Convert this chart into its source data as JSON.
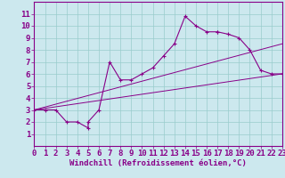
{
  "xlabel": "Windchill (Refroidissement éolien,°C)",
  "xlim": [
    0,
    23
  ],
  "ylim": [
    0,
    12
  ],
  "xticks": [
    0,
    1,
    2,
    3,
    4,
    5,
    6,
    7,
    8,
    9,
    10,
    11,
    12,
    13,
    14,
    15,
    16,
    17,
    18,
    19,
    20,
    21,
    22,
    23
  ],
  "yticks": [
    1,
    2,
    3,
    4,
    5,
    6,
    7,
    8,
    9,
    10,
    11
  ],
  "bg_color": "#cce8ee",
  "line_color": "#880088",
  "grid_color": "#99cccc",
  "series1_x": [
    0,
    1,
    2,
    3,
    4,
    5,
    5,
    6,
    7,
    8,
    9,
    10,
    11,
    12,
    13,
    14,
    15,
    16,
    17,
    17,
    18,
    19,
    20,
    21,
    22,
    23
  ],
  "series1_y": [
    3,
    3,
    3,
    2,
    2,
    1.5,
    2,
    3,
    7,
    5.5,
    5.5,
    6,
    6.5,
    7.5,
    8.5,
    10.8,
    10,
    9.5,
    9.5,
    9.5,
    9.3,
    9,
    8,
    6.3,
    6,
    6
  ],
  "series2_x": [
    0,
    23
  ],
  "series2_y": [
    3,
    8.5
  ],
  "series3_x": [
    0,
    23
  ],
  "series3_y": [
    3,
    6.0
  ],
  "font_size": 6.5
}
